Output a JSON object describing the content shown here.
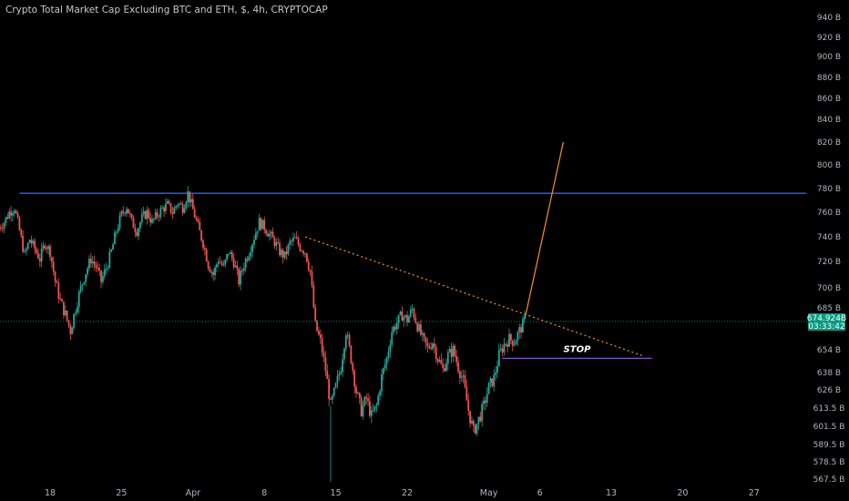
{
  "chart_data": {
    "type": "candlestick",
    "title": "Crypto Total Market Cap Excluding BTC and ETH, $, 4h, CRYPTOCAP",
    "y_axis": {
      "ticks": [
        {
          "value": 940,
          "label": "940 B"
        },
        {
          "value": 920,
          "label": "920 B"
        },
        {
          "value": 900,
          "label": "900 B"
        },
        {
          "value": 880,
          "label": "880 B"
        },
        {
          "value": 860,
          "label": "860 B"
        },
        {
          "value": 840,
          "label": "840 B"
        },
        {
          "value": 820,
          "label": "820 B"
        },
        {
          "value": 800,
          "label": "800 B"
        },
        {
          "value": 780,
          "label": "780 B"
        },
        {
          "value": 760,
          "label": "760 B"
        },
        {
          "value": 740,
          "label": "740 B"
        },
        {
          "value": 720,
          "label": "720 B"
        },
        {
          "value": 700,
          "label": "700 B"
        },
        {
          "value": 685,
          "label": "685 B"
        },
        {
          "value": 654,
          "label": "654 B"
        },
        {
          "value": 638,
          "label": "638 B"
        },
        {
          "value": 626,
          "label": "626 B"
        },
        {
          "value": 613.5,
          "label": "613.5 B"
        },
        {
          "value": 601.5,
          "label": "601.5 B"
        },
        {
          "value": 589.5,
          "label": "589.5 B"
        },
        {
          "value": 578.5,
          "label": "578.5 B"
        },
        {
          "value": 567.5,
          "label": "567.5 B"
        }
      ]
    },
    "x_axis": {
      "ticks": [
        {
          "label": "18",
          "day": 18
        },
        {
          "label": "25",
          "day": 25
        },
        {
          "label": "Apr",
          "day": 32
        },
        {
          "label": "8",
          "day": 39
        },
        {
          "label": "15",
          "day": 46
        },
        {
          "label": "22",
          "day": 53
        },
        {
          "label": "May",
          "day": 61
        },
        {
          "label": "6",
          "day": 66
        },
        {
          "label": "13",
          "day": 73
        },
        {
          "label": "20",
          "day": 80
        },
        {
          "label": "27",
          "day": 87
        }
      ]
    },
    "last_price": {
      "value": 674.924,
      "label": "674.924B",
      "countdown": "03:33:42"
    },
    "series": [
      {
        "day": 13.0,
        "value": 748
      },
      {
        "day": 13.5,
        "value": 752
      },
      {
        "day": 14.0,
        "value": 760
      },
      {
        "day": 14.5,
        "value": 764
      },
      {
        "day": 15.0,
        "value": 745
      },
      {
        "day": 15.5,
        "value": 725
      },
      {
        "day": 16.0,
        "value": 738
      },
      {
        "day": 16.5,
        "value": 730
      },
      {
        "day": 17.0,
        "value": 722
      },
      {
        "day": 17.5,
        "value": 735
      },
      {
        "day": 18.0,
        "value": 728
      },
      {
        "day": 18.5,
        "value": 705
      },
      {
        "day": 19.0,
        "value": 690
      },
      {
        "day": 19.5,
        "value": 680
      },
      {
        "day": 20.0,
        "value": 668
      },
      {
        "day": 20.5,
        "value": 685
      },
      {
        "day": 21.0,
        "value": 700
      },
      {
        "day": 21.5,
        "value": 712
      },
      {
        "day": 22.0,
        "value": 722
      },
      {
        "day": 22.5,
        "value": 716
      },
      {
        "day": 23.0,
        "value": 705
      },
      {
        "day": 23.5,
        "value": 715
      },
      {
        "day": 24.0,
        "value": 728
      },
      {
        "day": 24.5,
        "value": 745
      },
      {
        "day": 25.0,
        "value": 758
      },
      {
        "day": 25.5,
        "value": 765
      },
      {
        "day": 26.0,
        "value": 752
      },
      {
        "day": 26.5,
        "value": 745
      },
      {
        "day": 27.0,
        "value": 755
      },
      {
        "day": 27.5,
        "value": 760
      },
      {
        "day": 28.0,
        "value": 752
      },
      {
        "day": 28.5,
        "value": 758
      },
      {
        "day": 29.0,
        "value": 763
      },
      {
        "day": 29.5,
        "value": 766
      },
      {
        "day": 30.0,
        "value": 760
      },
      {
        "day": 30.5,
        "value": 768
      },
      {
        "day": 31.0,
        "value": 764
      },
      {
        "day": 31.5,
        "value": 776
      },
      {
        "day": 32.0,
        "value": 762
      },
      {
        "day": 32.5,
        "value": 748
      },
      {
        "day": 33.0,
        "value": 735
      },
      {
        "day": 33.5,
        "value": 718
      },
      {
        "day": 34.0,
        "value": 710
      },
      {
        "day": 34.5,
        "value": 722
      },
      {
        "day": 35.0,
        "value": 715
      },
      {
        "day": 35.5,
        "value": 728
      },
      {
        "day": 36.0,
        "value": 720
      },
      {
        "day": 36.5,
        "value": 705
      },
      {
        "day": 37.0,
        "value": 718
      },
      {
        "day": 37.5,
        "value": 728
      },
      {
        "day": 38.0,
        "value": 740
      },
      {
        "day": 38.5,
        "value": 752
      },
      {
        "day": 39.0,
        "value": 748
      },
      {
        "day": 39.5,
        "value": 742
      },
      {
        "day": 40.0,
        "value": 736
      },
      {
        "day": 40.5,
        "value": 728
      },
      {
        "day": 41.0,
        "value": 724
      },
      {
        "day": 41.5,
        "value": 735
      },
      {
        "day": 42.0,
        "value": 738
      },
      {
        "day": 42.5,
        "value": 732
      },
      {
        "day": 43.0,
        "value": 728
      },
      {
        "day": 43.5,
        "value": 712
      },
      {
        "day": 44.0,
        "value": 672
      },
      {
        "day": 44.5,
        "value": 660
      },
      {
        "day": 45.0,
        "value": 640
      },
      {
        "day": 45.5,
        "value": 615
      },
      {
        "day": 46.0,
        "value": 628
      },
      {
        "day": 46.5,
        "value": 642
      },
      {
        "day": 47.0,
        "value": 668
      },
      {
        "day": 47.5,
        "value": 648
      },
      {
        "day": 48.0,
        "value": 625
      },
      {
        "day": 48.5,
        "value": 612
      },
      {
        "day": 49.0,
        "value": 620
      },
      {
        "day": 49.5,
        "value": 608
      },
      {
        "day": 50.0,
        "value": 615
      },
      {
        "day": 50.5,
        "value": 635
      },
      {
        "day": 51.0,
        "value": 648
      },
      {
        "day": 51.5,
        "value": 668
      },
      {
        "day": 52.0,
        "value": 674
      },
      {
        "day": 52.5,
        "value": 680
      },
      {
        "day": 53.0,
        "value": 676
      },
      {
        "day": 53.5,
        "value": 684
      },
      {
        "day": 54.0,
        "value": 672
      },
      {
        "day": 54.5,
        "value": 662
      },
      {
        "day": 55.0,
        "value": 655
      },
      {
        "day": 55.5,
        "value": 660
      },
      {
        "day": 56.0,
        "value": 648
      },
      {
        "day": 56.5,
        "value": 640
      },
      {
        "day": 57.0,
        "value": 650
      },
      {
        "day": 57.5,
        "value": 654
      },
      {
        "day": 58.0,
        "value": 642
      },
      {
        "day": 58.5,
        "value": 632
      },
      {
        "day": 59.0,
        "value": 612
      },
      {
        "day": 59.5,
        "value": 598
      },
      {
        "day": 60.0,
        "value": 606
      },
      {
        "day": 60.5,
        "value": 615
      },
      {
        "day": 61.0,
        "value": 628
      },
      {
        "day": 61.5,
        "value": 634
      },
      {
        "day": 62.0,
        "value": 650
      },
      {
        "day": 62.5,
        "value": 658
      },
      {
        "day": 63.0,
        "value": 662
      },
      {
        "day": 63.5,
        "value": 660
      },
      {
        "day": 64.0,
        "value": 668
      },
      {
        "day": 64.5,
        "value": 675
      }
    ],
    "drawings": [
      {
        "type": "horizontal",
        "name": "resistance",
        "value": 776,
        "day_start": 15,
        "day_end": 102,
        "color": "#2962ff"
      },
      {
        "type": "trendline",
        "name": "descending",
        "day_start": 43,
        "value_start": 740,
        "day_end": 76,
        "value_end": 650,
        "color": "#f7931a",
        "dotted": true
      },
      {
        "type": "horizontal",
        "name": "stop",
        "value": 648,
        "day_start": 62.3,
        "day_end": 77,
        "color": "#7e57c2",
        "label": "STOP"
      },
      {
        "type": "projection",
        "name": "target",
        "day_start": 64.5,
        "value_start": 676,
        "day_end": 68.3,
        "value_end": 820,
        "color": "#f7931a"
      }
    ],
    "colors": {
      "up": "#26a69a",
      "down": "#ef5350",
      "background": "#000000",
      "axis_text": "#b2b5be",
      "badge": "#089981"
    },
    "grid": false
  }
}
